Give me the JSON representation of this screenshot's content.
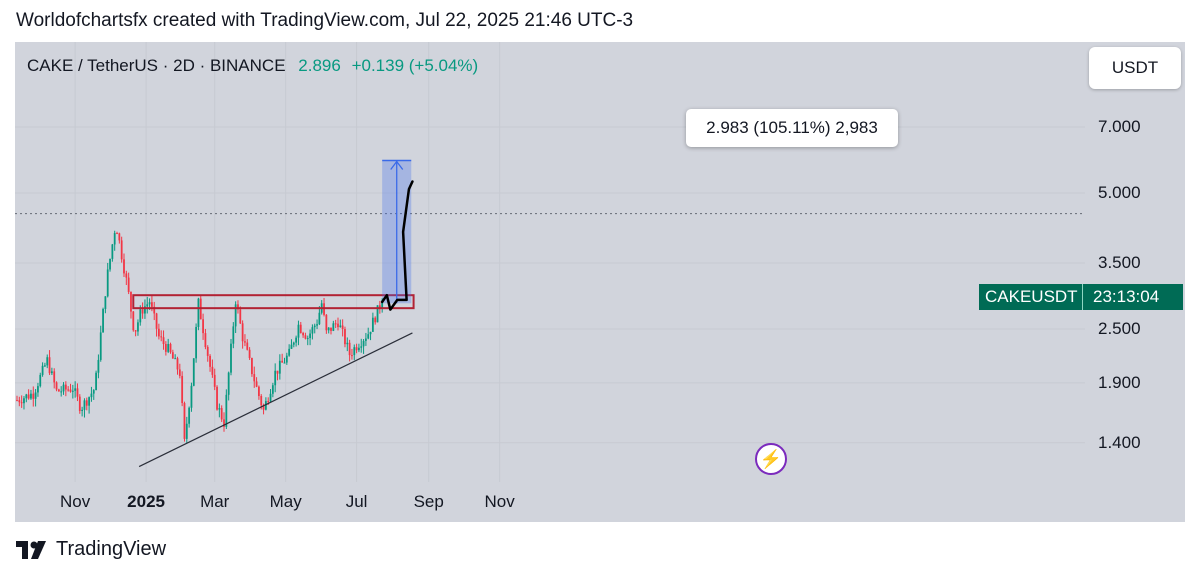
{
  "header": {
    "caption": "Worldofchartsfx created with TradingView.com, Jul 22, 2025 21:46 UTC-3"
  },
  "symbol": {
    "name": "CAKE / TetherUS · 2D · BINANCE",
    "price": "2.896",
    "change": "+0.139 (+5.04%)"
  },
  "currency_button": "USDT",
  "badge": {
    "ticker": "CAKEUSDT",
    "countdown": "23:13:04"
  },
  "measure_label": "2.983 (105.11%) 2,983",
  "brand": "TradingView",
  "colors": {
    "up": "#089981",
    "down": "#f23645",
    "measure": "#3a6ae8",
    "zone": "#b22234"
  },
  "chart_data": {
    "type": "candlestick",
    "scale": "log",
    "interval": "2D",
    "y_ticks": [
      "7.000",
      "5.000",
      "3.500",
      "2.500",
      "1.900",
      "1.400"
    ],
    "y_tick_values": [
      7.0,
      5.0,
      3.5,
      2.5,
      1.9,
      1.4
    ],
    "x_ticks": [
      "Nov",
      "2025",
      "Mar",
      "May",
      "Jul",
      "Sep",
      "Nov"
    ],
    "x_tick_dates": [
      "2024-11-01",
      "2025-01-01",
      "2025-03-01",
      "2025-05-01",
      "2025-07-01",
      "2025-09-01",
      "2025-11-01"
    ],
    "date_range": [
      "2024-09-12",
      "2025-07-23"
    ],
    "y_range": [
      1.2,
      8.8
    ],
    "last_price": 2.896,
    "all_time_high_line": 4.5,
    "resistance_zone": [
      2.78,
      2.97
    ],
    "trendline": {
      "from": [
        "2024-12-26",
        1.24
      ],
      "to": [
        "2025-08-18",
        2.45
      ]
    },
    "measure": {
      "from_price": 2.85,
      "to_price": 5.9,
      "from_date": "2025-07-23",
      "to_date": "2025-08-17"
    },
    "projection_path": [
      [
        "2025-07-23",
        2.87
      ],
      [
        "2025-07-27",
        2.97
      ],
      [
        "2025-07-30",
        2.76
      ],
      [
        "2025-08-05",
        2.9
      ],
      [
        "2025-08-13",
        2.9
      ],
      [
        "2025-08-10",
        4.1
      ],
      [
        "2025-08-15",
        5.1
      ],
      [
        "2025-08-18",
        5.3
      ]
    ],
    "price_path": [
      [
        "2024-09-12",
        1.74
      ],
      [
        "2024-09-26",
        1.8
      ],
      [
        "2024-10-08",
        2.13
      ],
      [
        "2024-10-16",
        1.82
      ],
      [
        "2024-10-30",
        1.85
      ],
      [
        "2024-11-06",
        1.67
      ],
      [
        "2024-11-18",
        1.85
      ],
      [
        "2024-11-28",
        3.2
      ],
      [
        "2024-12-06",
        4.3
      ],
      [
        "2024-12-16",
        3.1
      ],
      [
        "2024-12-22",
        2.45
      ],
      [
        "2024-12-28",
        2.75
      ],
      [
        "2025-01-04",
        2.88
      ],
      [
        "2025-01-12",
        2.4
      ],
      [
        "2025-01-20",
        2.25
      ],
      [
        "2025-01-30",
        2.0
      ],
      [
        "2025-02-03",
        1.4
      ],
      [
        "2025-02-09",
        1.9
      ],
      [
        "2025-02-15",
        2.85
      ],
      [
        "2025-02-23",
        2.2
      ],
      [
        "2025-03-03",
        1.7
      ],
      [
        "2025-03-09",
        1.55
      ],
      [
        "2025-03-19",
        2.9
      ],
      [
        "2025-03-25",
        2.4
      ],
      [
        "2025-04-06",
        1.85
      ],
      [
        "2025-04-12",
        1.65
      ],
      [
        "2025-04-22",
        2.0
      ],
      [
        "2025-05-04",
        2.2
      ],
      [
        "2025-05-12",
        2.55
      ],
      [
        "2025-05-20",
        2.4
      ],
      [
        "2025-05-28",
        2.6
      ],
      [
        "2025-06-01",
        2.85
      ],
      [
        "2025-06-05",
        2.45
      ],
      [
        "2025-06-15",
        2.6
      ],
      [
        "2025-06-25",
        2.2
      ],
      [
        "2025-07-01",
        2.3
      ],
      [
        "2025-07-11",
        2.45
      ],
      [
        "2025-07-23",
        2.896
      ]
    ]
  }
}
